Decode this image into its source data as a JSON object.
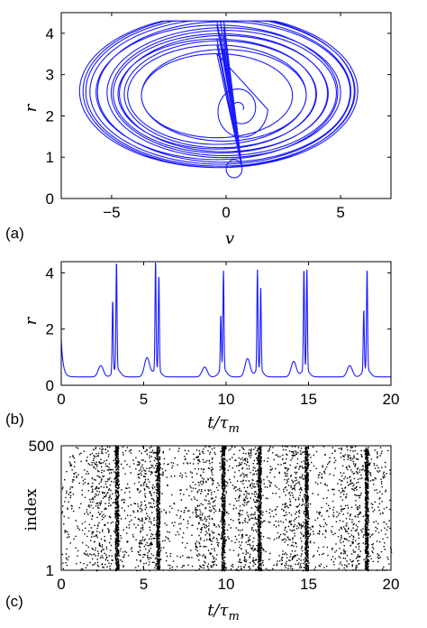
{
  "chart_data": [
    {
      "type": "line",
      "panel_label": "(a)",
      "xlabel": "v",
      "ylabel": "r",
      "xlim": [
        -7.2,
        7.2
      ],
      "ylim": [
        0,
        4.5
      ],
      "xticks": [
        -5,
        0,
        5
      ],
      "yticks": [
        0,
        1,
        2,
        3,
        4
      ],
      "color": "#1a1aff",
      "grid": false,
      "curve_description": "phase portrait: trajectory in (v, r) plane spiraling from near (0.4, 2.1) out to loops spanning v -6.4..6 and r 0.2..4.3"
    },
    {
      "type": "line",
      "panel_label": "(b)",
      "xlabel": "t/τ",
      "xlabel_sub": "m",
      "ylabel": "r",
      "xlim": [
        0,
        20
      ],
      "ylim": [
        0,
        4.4
      ],
      "xticks": [
        0,
        5,
        10,
        15,
        20
      ],
      "yticks": [
        0,
        2,
        4
      ],
      "color": "#1a1aff",
      "grid": false,
      "baseline": 0.3,
      "bursts": [
        {
          "t": 3.35,
          "peaks": [
            [
              3.12,
              2.85
            ],
            [
              3.35,
              4.1
            ]
          ],
          "pre": [
            2.4,
            0.7
          ]
        },
        {
          "t": 5.8,
          "peaks": [
            [
              5.72,
              4.15
            ],
            [
              5.92,
              3.65
            ]
          ],
          "pre": [
            5.2,
            0.98
          ]
        },
        {
          "t": 9.8,
          "peaks": [
            [
              9.68,
              2.25
            ],
            [
              9.84,
              3.8
            ]
          ],
          "pre": [
            8.7,
            0.65
          ]
        },
        {
          "t": 12.0,
          "peaks": [
            [
              11.9,
              3.85
            ],
            [
              12.1,
              3.2
            ]
          ],
          "pre": [
            11.3,
            0.95
          ]
        },
        {
          "t": 14.8,
          "peaks": [
            [
              14.72,
              3.85
            ],
            [
              14.9,
              3.85
            ]
          ],
          "pre": [
            14.1,
            0.85
          ]
        },
        {
          "t": 18.5,
          "peaks": [
            [
              18.35,
              2.45
            ],
            [
              18.55,
              3.85
            ]
          ],
          "pre": [
            17.5,
            0.7
          ]
        }
      ]
    },
    {
      "type": "scatter",
      "panel_label": "(c)",
      "xlabel": "t/τ",
      "xlabel_sub": "m",
      "ylabel": "index",
      "xlim": [
        0,
        20
      ],
      "ylim": [
        1,
        500
      ],
      "xticks": [
        0,
        5,
        10,
        15,
        20
      ],
      "yticks": [
        1,
        500
      ],
      "color": "#000000",
      "grid": false,
      "sync_times": [
        3.35,
        5.85,
        9.8,
        12.0,
        14.85,
        18.5
      ],
      "pre_burst_times": [
        2.4,
        5.2,
        8.7,
        11.3,
        14.1,
        17.5
      ]
    }
  ]
}
